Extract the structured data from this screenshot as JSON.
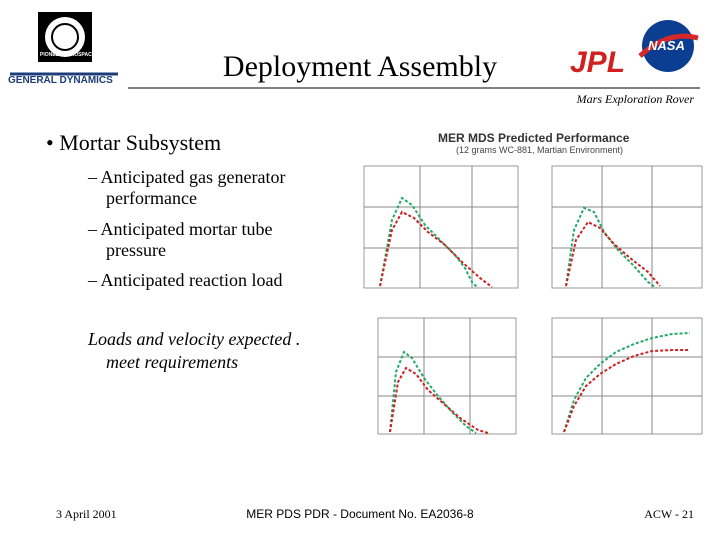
{
  "header": {
    "title": "Deployment Assembly",
    "subtitle": "Mars Exploration Rover"
  },
  "logos": {
    "pioneer": "PIONEER AEROSPACE",
    "general_dynamics": "GENERAL DYNAMICS",
    "jpl": "JPL",
    "nasa": "NASA"
  },
  "body": {
    "bullet": "Mortar Subsystem",
    "sub_bullets": [
      [
        "Anticipated  gas generator",
        "performance"
      ],
      [
        "Anticipated mortar tube",
        "pressure"
      ],
      [
        "Anticipated reaction load"
      ]
    ],
    "note": [
      "Loads and velocity expected .",
      "meet requirements"
    ]
  },
  "figure": {
    "title": "MER MDS Predicted Performance",
    "subtitle": "(12 grams WC-881, Martian Environment)"
  },
  "footer": {
    "date": "3 April 2001",
    "document": "MER PDS PDR - Document No. EA2036-8",
    "page": "ACW - 21"
  }
}
